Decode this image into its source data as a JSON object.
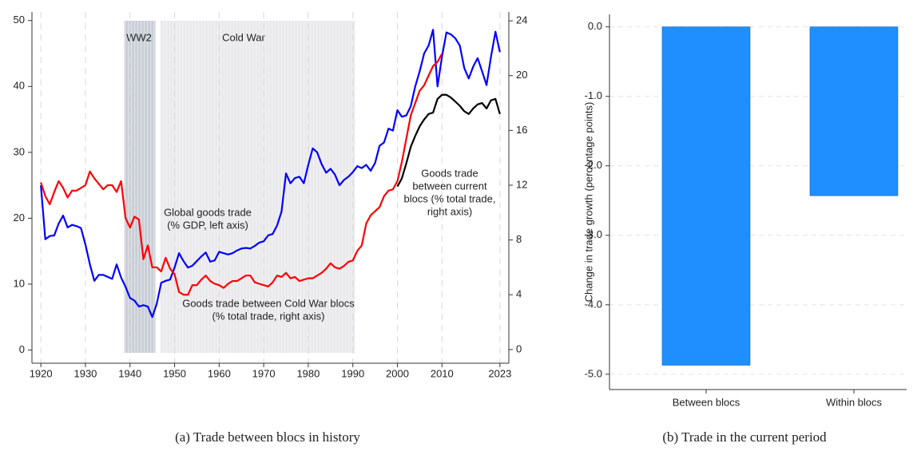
{
  "chart_data": [
    {
      "type": "line",
      "caption": "(a)  Trade between blocs in history",
      "x": [
        1920,
        1921,
        1922,
        1923,
        1924,
        1925,
        1926,
        1927,
        1928,
        1929,
        1930,
        1931,
        1932,
        1933,
        1934,
        1935,
        1936,
        1937,
        1938,
        1939,
        1940,
        1941,
        1942,
        1943,
        1944,
        1945,
        1946,
        1947,
        1948,
        1949,
        1950,
        1951,
        1952,
        1953,
        1954,
        1955,
        1956,
        1957,
        1958,
        1959,
        1960,
        1961,
        1962,
        1963,
        1964,
        1965,
        1966,
        1967,
        1968,
        1969,
        1970,
        1971,
        1972,
        1973,
        1974,
        1975,
        1976,
        1977,
        1978,
        1979,
        1980,
        1981,
        1982,
        1983,
        1984,
        1985,
        1986,
        1987,
        1988,
        1989,
        1990,
        1991,
        1992,
        1993,
        1994,
        1995,
        1996,
        1997,
        1998,
        1999,
        2000,
        2001,
        2002,
        2003,
        2004,
        2005,
        2006,
        2007,
        2008,
        2009,
        2010,
        2011,
        2012,
        2013,
        2014,
        2015,
        2016,
        2017,
        2018,
        2019,
        2020,
        2021,
        2022,
        2023
      ],
      "xlim": [
        1918,
        2025
      ],
      "xticks": [
        1920,
        1930,
        1940,
        1950,
        1960,
        1970,
        1980,
        1990,
        2000,
        2010,
        2023
      ],
      "ylim": [
        -2,
        51.3
      ],
      "yticks": [
        0,
        10,
        20,
        30,
        40,
        50
      ],
      "y2lim": [
        -1,
        24.65
      ],
      "y2ticks": [
        0,
        4,
        8,
        12,
        16,
        20,
        24
      ],
      "grid_x": true,
      "series": [
        {
          "color": "#0000ff",
          "values": [
            25,
            16.8,
            17.3,
            17.4,
            19.2,
            20.4,
            18.6,
            19.0,
            18.8,
            18.5,
            16,
            13,
            10.5,
            11.4,
            11.4,
            11.1,
            10.8,
            13.0,
            11.0,
            9.6,
            7.9,
            7.5,
            6.6,
            6.8,
            6.6,
            5.0,
            7.0,
            10.2,
            10.5,
            10.7,
            12.5,
            14.7,
            13.5,
            12.5,
            12.8,
            13.5,
            14.2,
            14.8,
            13.4,
            13.6,
            14.9,
            14.7,
            14.5,
            14.7,
            15.1,
            15.4,
            15.5,
            15.4,
            15.8,
            16.3,
            16.5,
            17.4,
            17.6,
            18.9,
            21.0,
            26.8,
            25.3,
            26.1,
            26.3,
            25.3,
            28.1,
            30.6,
            30.0,
            28.2,
            26.9,
            27.5,
            26.6,
            25.0,
            25.8,
            26.3,
            27.0,
            27.9,
            27.6,
            28.1,
            27.2,
            28.4,
            31.0,
            31.5,
            33.6,
            33.3,
            36.4,
            35.4,
            35.6,
            37.0,
            40.0,
            42.3,
            45.0,
            46.2,
            48.6,
            40.0,
            44.5,
            48.2,
            47.9,
            47.3,
            46.2,
            42.8,
            41.2,
            43.0,
            44.3,
            42.3,
            40.2,
            44.5,
            48.3,
            45.2
          ]
        },
        {
          "color": "#ff0000",
          "axis": "y2",
          "values": [
            12.2,
            11.2,
            10.6,
            11.5,
            12.3,
            11.8,
            11.1,
            11.6,
            11.6,
            11.8,
            12.0,
            13.0,
            12.5,
            12.1,
            11.7,
            12.0,
            12.0,
            11.5,
            12.3,
            9.6,
            8.9,
            9.7,
            9.5,
            6.6,
            7.6,
            6.0,
            6.0,
            5.7,
            6.7,
            5.9,
            5.5,
            4.2,
            4.0,
            4.0,
            4.7,
            4.7,
            5.1,
            5.4,
            5.0,
            4.8,
            4.7,
            4.5,
            4.8,
            5.0,
            5.0,
            5.2,
            5.4,
            5.4,
            4.9,
            4.8,
            4.7,
            4.6,
            4.9,
            5.4,
            5.3,
            5.6,
            5.2,
            5.3,
            5.0,
            5.1,
            5.2,
            5.2,
            5.4,
            5.6,
            5.9,
            6.3,
            6.0,
            5.9,
            6.1,
            6.4,
            6.5,
            7.2,
            7.6,
            9.2,
            9.8,
            10.1,
            10.4,
            11.2,
            11.6,
            11.7,
            12.3,
            13.7,
            15.4,
            17.1,
            18.0,
            18.9,
            19.3,
            20.0,
            20.7,
            21.0,
            21.6,
            null,
            null,
            null,
            null,
            null,
            null,
            null,
            null,
            null,
            null,
            null,
            null,
            null
          ]
        },
        {
          "color": "#000000",
          "axis": "y2",
          "values": [
            null,
            null,
            null,
            null,
            null,
            null,
            null,
            null,
            null,
            null,
            null,
            null,
            null,
            null,
            null,
            null,
            null,
            null,
            null,
            null,
            null,
            null,
            null,
            null,
            null,
            null,
            null,
            null,
            null,
            null,
            null,
            null,
            null,
            null,
            null,
            null,
            null,
            null,
            null,
            null,
            null,
            null,
            null,
            null,
            null,
            null,
            null,
            null,
            null,
            null,
            null,
            null,
            null,
            null,
            null,
            null,
            null,
            null,
            null,
            null,
            null,
            null,
            null,
            null,
            null,
            null,
            null,
            null,
            null,
            null,
            null,
            null,
            null,
            null,
            null,
            null,
            null,
            null,
            null,
            null,
            11.9,
            12.5,
            13.6,
            14.8,
            15.6,
            16.3,
            16.8,
            17.2,
            17.3,
            18.3,
            18.6,
            18.6,
            18.4,
            18.1,
            17.8,
            17.4,
            17.2,
            17.6,
            17.9,
            18.0,
            17.6,
            18.2,
            18.3,
            17.2
          ]
        }
      ],
      "shaded_regions": [
        {
          "label": "WW2",
          "start": 1938.7,
          "end": 1945.7,
          "color": "#c9cdd6"
        },
        {
          "label": "Cold War",
          "start": 1946.8,
          "end": 1990.5,
          "color": "#e9e9ec"
        }
      ],
      "annotations": [
        {
          "lines": [
            "Global goods trade",
            "(% GDP, left axis)"
          ],
          "color": "#0000ff"
        },
        {
          "lines": [
            "Goods trade between Cold War blocs",
            "(% total trade, right axis)"
          ],
          "color": "#ff0000"
        },
        {
          "lines": [
            "Goods trade",
            "between current",
            "blocs (% total trade,",
            "right axis)"
          ],
          "color": "#000000"
        }
      ]
    },
    {
      "type": "bar",
      "caption": "(b)  Trade in the current period",
      "ylabel": "Change in trade growth (percentage points)",
      "categories": [
        "Between blocs",
        "Within blocs"
      ],
      "values": [
        -4.87,
        -2.43
      ],
      "color": "#1f8fff",
      "ylim": [
        -5.22,
        0.18
      ],
      "yticks": [
        {
          "value": 0,
          "label": "0.0"
        },
        {
          "value": -1,
          "label": "-1.0"
        },
        {
          "value": -2,
          "label": "-2.0"
        },
        {
          "value": -3,
          "label": "-3.0"
        },
        {
          "value": -4,
          "label": "-4.0"
        },
        {
          "value": -5,
          "label": "-5.0"
        }
      ],
      "grid": true
    }
  ]
}
